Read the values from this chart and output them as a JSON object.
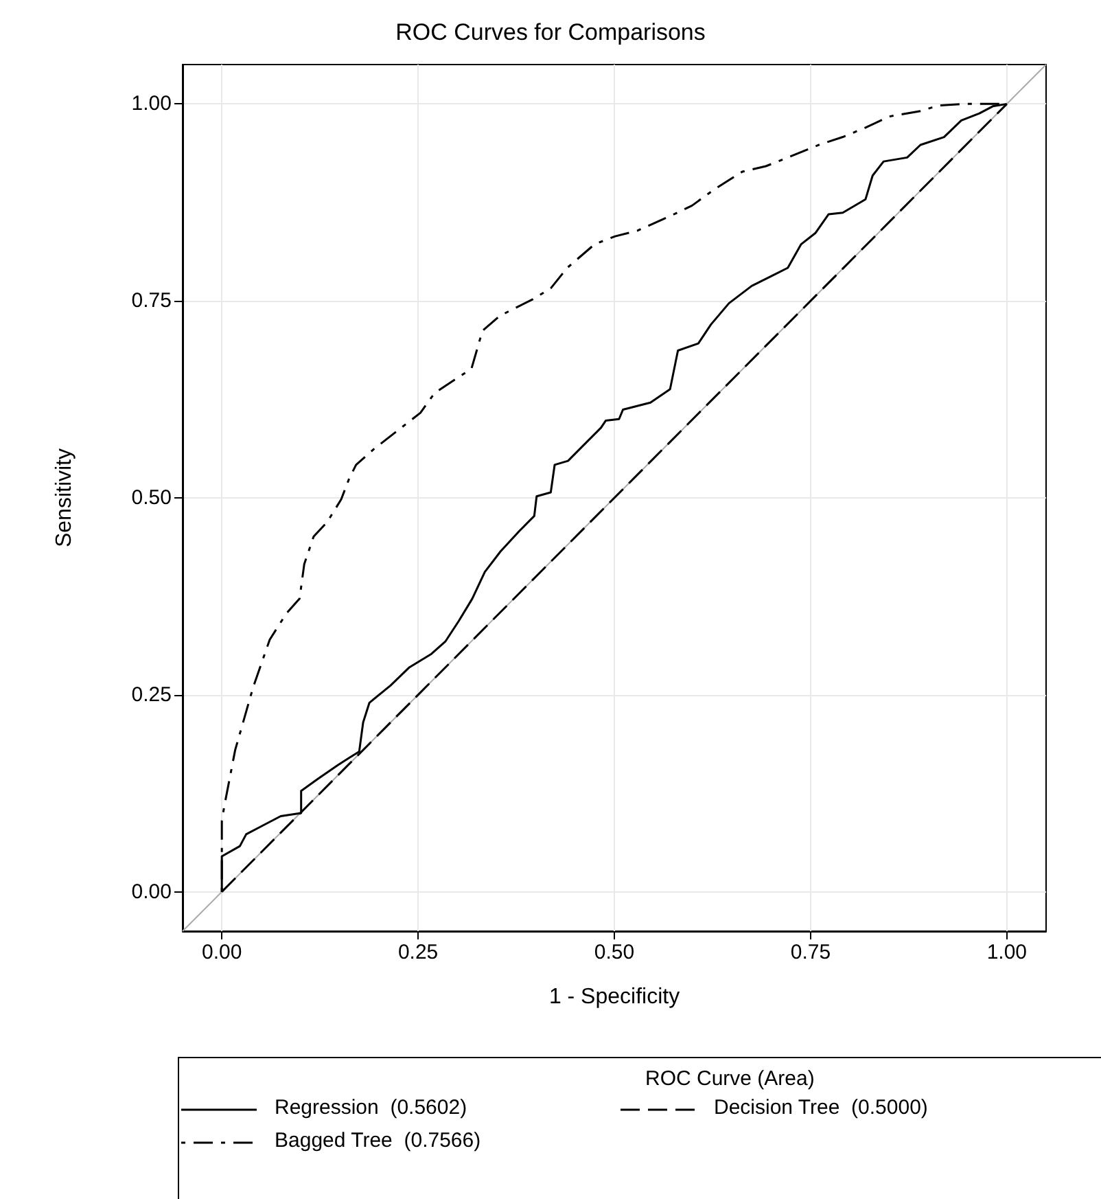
{
  "chart_data": {
    "type": "line",
    "title": "ROC Curves for Comparisons",
    "xlabel": "1 - Specificity",
    "ylabel": "Sensitivity",
    "legend_title": "ROC Curve (Area)",
    "xlim": [
      -0.05,
      1.05
    ],
    "ylim": [
      -0.05,
      1.05
    ],
    "xticks": [
      {
        "value": 0,
        "label": "0.00"
      },
      {
        "value": 0.25,
        "label": "0.25"
      },
      {
        "value": 0.5,
        "label": "0.50"
      },
      {
        "value": 0.75,
        "label": "0.75"
      },
      {
        "value": 1,
        "label": "1.00"
      }
    ],
    "yticks": [
      {
        "value": 0,
        "label": "0.00"
      },
      {
        "value": 0.25,
        "label": "0.25"
      },
      {
        "value": 0.5,
        "label": "0.50"
      },
      {
        "value": 0.75,
        "label": "0.75"
      },
      {
        "value": 1,
        "label": "1.00"
      }
    ],
    "grid": true,
    "legend": "bottom",
    "marker": "none",
    "series": [
      {
        "color": "#aaaaaa",
        "line_style": "solid",
        "x": [
          -0.05,
          1.05
        ],
        "values": [
          -0.05,
          1.05
        ]
      },
      {
        "name": "Regression  (0.5602)",
        "color": "#000000",
        "line_style": "solid",
        "x": [
          0,
          0,
          0.023,
          0.031,
          0.052,
          0.075,
          0.101,
          0.101,
          0.122,
          0.148,
          0.175,
          0.18,
          0.188,
          0.215,
          0.239,
          0.267,
          0.285,
          0.302,
          0.319,
          0.335,
          0.355,
          0.379,
          0.398,
          0.401,
          0.419,
          0.424,
          0.441,
          0.459,
          0.483,
          0.489,
          0.506,
          0.511,
          0.546,
          0.571,
          0.581,
          0.607,
          0.623,
          0.646,
          0.675,
          0.703,
          0.721,
          0.738,
          0.756,
          0.773,
          0.791,
          0.82,
          0.829,
          0.843,
          0.873,
          0.89,
          0.92,
          0.942,
          0.965,
          0.982,
          1
        ],
        "values": [
          0,
          0.045,
          0.058,
          0.073,
          0.084,
          0.096,
          0.1,
          0.128,
          0.143,
          0.161,
          0.178,
          0.215,
          0.24,
          0.262,
          0.285,
          0.302,
          0.318,
          0.344,
          0.372,
          0.406,
          0.432,
          0.458,
          0.477,
          0.502,
          0.507,
          0.542,
          0.547,
          0.565,
          0.589,
          0.598,
          0.6,
          0.612,
          0.621,
          0.638,
          0.687,
          0.696,
          0.72,
          0.747,
          0.769,
          0.783,
          0.792,
          0.822,
          0.836,
          0.86,
          0.862,
          0.879,
          0.909,
          0.927,
          0.932,
          0.948,
          0.958,
          0.979,
          0.988,
          0.997,
          1
        ]
      },
      {
        "name": "Decision Tree  (0.5000)",
        "color": "#000000",
        "line_style": "dashed",
        "x": [
          0,
          1
        ],
        "values": [
          0,
          1
        ]
      },
      {
        "name": "Bagged Tree  (0.7566)",
        "color": "#000000",
        "line_style": "dashdot",
        "x": [
          0,
          0,
          0.003,
          0.017,
          0.04,
          0.061,
          0.082,
          0.099,
          0.105,
          0.117,
          0.134,
          0.152,
          0.162,
          0.171,
          0.195,
          0.253,
          0.271,
          0.318,
          0.332,
          0.354,
          0.396,
          0.419,
          0.44,
          0.475,
          0.501,
          0.529,
          0.576,
          0.599,
          0.628,
          0.663,
          0.693,
          0.721,
          0.763,
          0.791,
          0.82,
          0.85,
          0.89,
          0.913,
          0.945,
          1
        ],
        "values": [
          0,
          0.09,
          0.108,
          0.18,
          0.26,
          0.32,
          0.353,
          0.372,
          0.416,
          0.451,
          0.469,
          0.498,
          0.524,
          0.542,
          0.563,
          0.608,
          0.633,
          0.664,
          0.712,
          0.731,
          0.752,
          0.766,
          0.792,
          0.822,
          0.832,
          0.839,
          0.86,
          0.871,
          0.892,
          0.914,
          0.921,
          0.932,
          0.949,
          0.958,
          0.97,
          0.984,
          0.991,
          0.998,
          1,
          1
        ]
      }
    ]
  }
}
